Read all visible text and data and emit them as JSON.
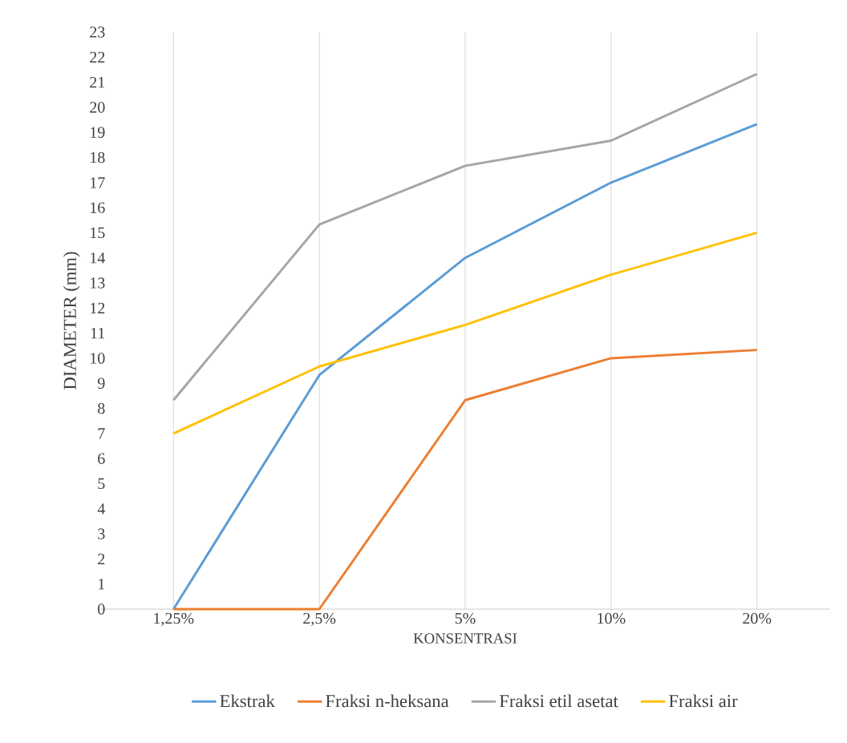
{
  "chart_data": {
    "type": "line",
    "xlabel": "KONSENTRASI",
    "ylabel": "DIAMETER  (mm)",
    "categories": [
      "1,25%",
      "2,5%",
      "5%",
      "10%",
      "20%"
    ],
    "series": [
      {
        "name": "Ekstrak",
        "color": "#5b9bd5",
        "values": [
          0,
          9.33,
          14,
          17,
          19.33
        ]
      },
      {
        "name": "Fraksi n-heksana",
        "color": "#ed7d31",
        "values": [
          0,
          0,
          8.33,
          10,
          10.33
        ]
      },
      {
        "name": "Fraksi etil asetat",
        "color": "#a5a5a5",
        "values": [
          8.33,
          15.33,
          17.67,
          18.67,
          21.33
        ]
      },
      {
        "name": "Fraksi air",
        "color": "#ffc000",
        "values": [
          7,
          9.67,
          11.33,
          13.33,
          15
        ]
      }
    ],
    "ylim": [
      0,
      23
    ],
    "yticks": [
      0,
      1,
      2,
      3,
      4,
      5,
      6,
      7,
      8,
      9,
      10,
      11,
      12,
      13,
      14,
      15,
      16,
      17,
      18,
      19,
      20,
      21,
      22,
      23
    ],
    "grid": "x",
    "legend": "bottom",
    "marker": "none",
    "line_style": "solid"
  }
}
